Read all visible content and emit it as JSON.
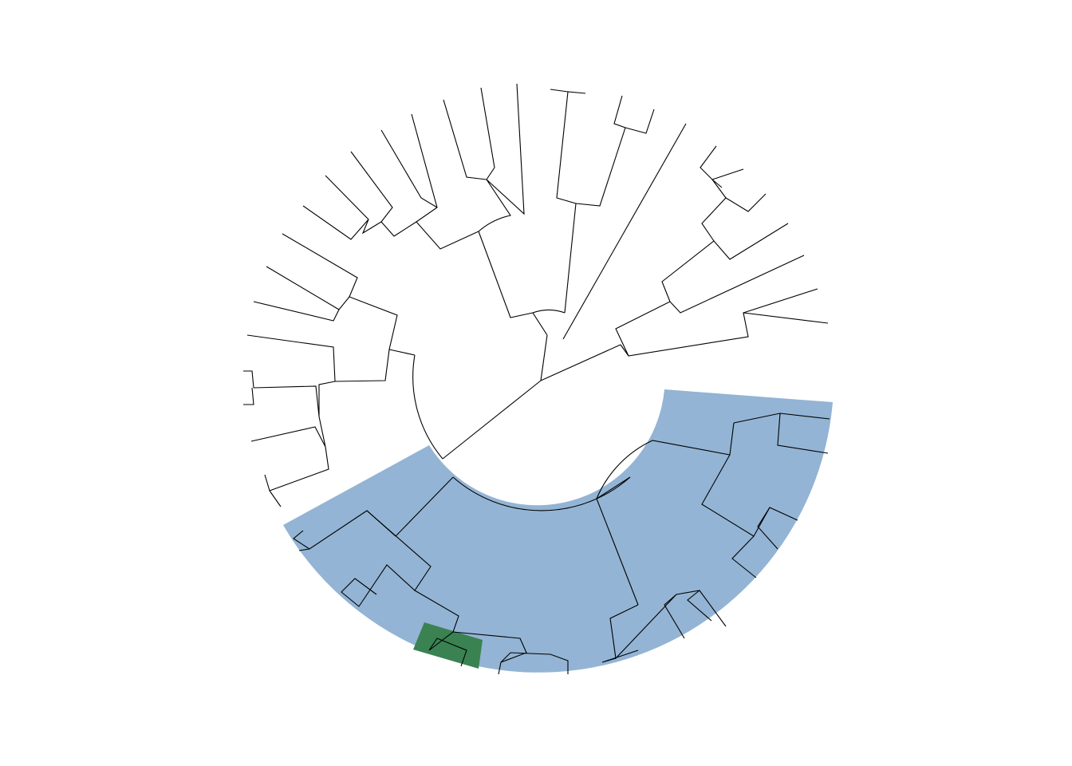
{
  "diagram": {
    "type": "circular-phylogenetic-tree",
    "layout": "fan",
    "tip_labels_shown": false,
    "branch_color": "#000000",
    "background": "#ffffff",
    "highlights": [
      {
        "clade": "large-clade",
        "color": "#5b8db8",
        "fill": "#93b4d4"
      },
      {
        "clade": "small-clade",
        "color": "#2e7d4f",
        "fill": "#3a8252"
      }
    ]
  }
}
